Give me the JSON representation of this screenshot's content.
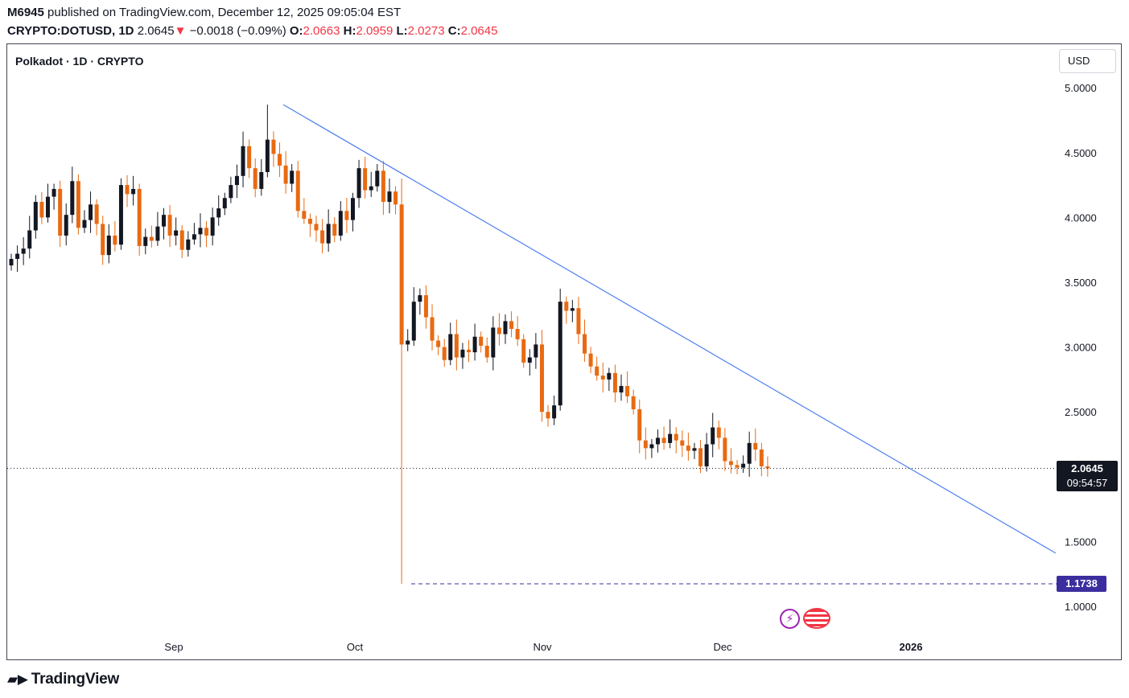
{
  "header": {
    "author": "M6945",
    "published_text": "published on TradingView.com, December 12, 2025 09:05:04 EST",
    "symbol": "CRYPTO:DOTUSD, 1D",
    "last": "2.0645",
    "change_arrow": "▼",
    "change": "−0.0018 (−0.09%)",
    "o_label": "O:",
    "o_value": "2.0663",
    "h_label": "H:",
    "h_value": "2.0959",
    "l_label": "L:",
    "l_value": "2.0273",
    "c_label": "C:",
    "c_value": "2.0645"
  },
  "legend": "Polkadot · 1D · CRYPTO",
  "currency_button": "USD",
  "price_tag": {
    "price": "2.0645",
    "countdown": "09:54:57"
  },
  "low_tag": "1.1738",
  "brand": "TradingView",
  "colors": {
    "up": "#131722",
    "down": "#e86a12",
    "trendline": "#4f7ff2",
    "low_tag": "#3c2e9e",
    "price_tag": "#131722"
  },
  "chart_data": {
    "type": "candlestick",
    "title": "Polkadot · 1D · CRYPTO",
    "ylim": [
      0.8,
      5.2
    ],
    "y_ticks": [
      "5.0000",
      "4.5000",
      "4.0000",
      "3.5000",
      "3.0000",
      "2.5000",
      "1.5000",
      "1.0000"
    ],
    "x_ticks": [
      "Sep",
      "Oct",
      "Nov",
      "Dec",
      "2026"
    ],
    "last_price": 2.0645,
    "period_low": 1.1738,
    "trendline": {
      "start": {
        "date": "2025-09-19",
        "price": 4.87
      },
      "end": {
        "date": "2026-01-28",
        "price": 1.41
      }
    },
    "ohlc_close_series": [
      3.68,
      3.72,
      3.76,
      3.9,
      4.12,
      4.0,
      4.16,
      4.22,
      3.86,
      4.02,
      4.28,
      3.92,
      3.98,
      4.1,
      3.95,
      3.71,
      3.86,
      3.79,
      4.25,
      4.18,
      4.22,
      3.78,
      3.85,
      3.82,
      3.93,
      4.02,
      3.86,
      3.9,
      3.75,
      3.83,
      3.87,
      3.92,
      3.86,
      4.0,
      4.07,
      4.15,
      4.25,
      4.32,
      4.55,
      4.38,
      4.22,
      4.35,
      4.6,
      4.49,
      4.4,
      4.26,
      4.36,
      4.05,
      3.99,
      3.95,
      3.9,
      3.8,
      3.95,
      3.86,
      4.05,
      3.98,
      4.15,
      4.38,
      4.21,
      4.24,
      4.36,
      4.12,
      4.2,
      4.1,
      3.02,
      3.05,
      3.35,
      3.4,
      3.23,
      3.05,
      3.0,
      2.9,
      3.1,
      2.92,
      2.98,
      2.96,
      3.08,
      3.01,
      2.92,
      3.15,
      3.1,
      3.2,
      3.14,
      3.06,
      2.88,
      2.92,
      3.02,
      2.5,
      2.45,
      2.55,
      3.35,
      3.28,
      3.3,
      3.1,
      2.95,
      2.85,
      2.78,
      2.75,
      2.8,
      2.65,
      2.7,
      2.62,
      2.52,
      2.28,
      2.22,
      2.25,
      2.3,
      2.26,
      2.33,
      2.28,
      2.24,
      2.2,
      2.22,
      2.08,
      2.25,
      2.38,
      2.3,
      2.12,
      2.09,
      2.07,
      2.1,
      2.26,
      2.21,
      2.08,
      2.0645
    ]
  }
}
